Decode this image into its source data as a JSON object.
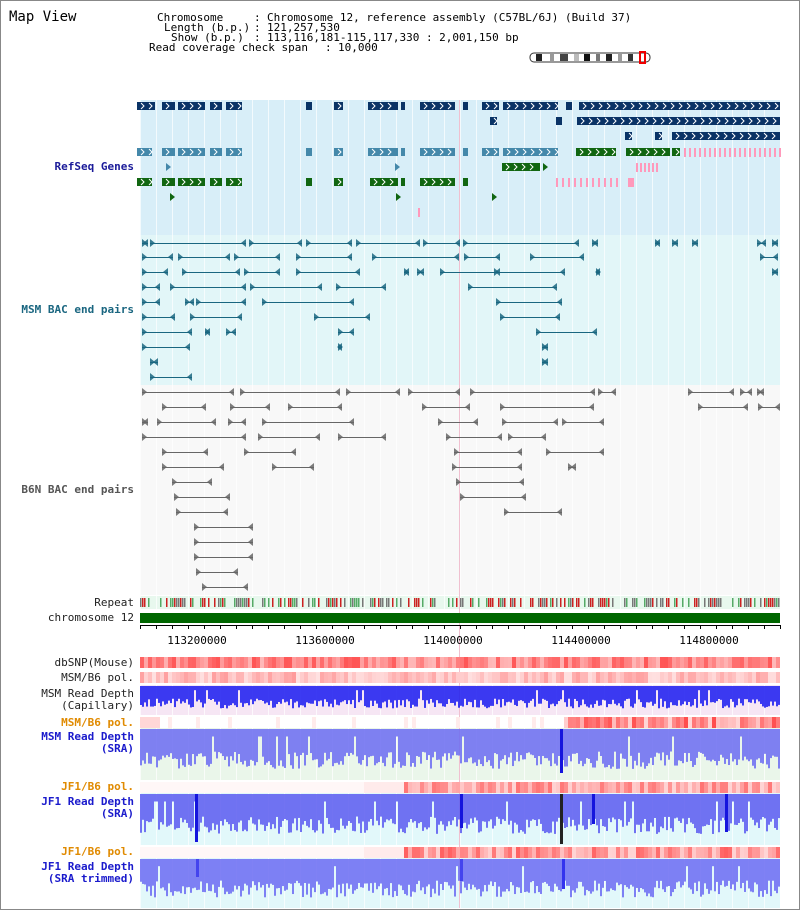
{
  "page": {
    "title": "Map View"
  },
  "header": {
    "chromosome_label": "Chromosome",
    "chromosome_value": "Chromosome 12, reference assembly (C57BL/6J) (Build 37)",
    "length_label": "Length (b.p.)",
    "length_value": "121,257,530",
    "show_label": "Show (b.p.)",
    "show_value": "113,116,181-115,117,330 : 2,001,150 bp",
    "span_label": "Read coverage check span",
    "span_value": "10,000"
  },
  "tracks": {
    "refseq": "RefSeq Genes",
    "msm_bac": "MSM BAC end pairs",
    "b6n_bac": "B6N BAC end pairs",
    "repeat": "Repeat",
    "chromosome": "chromosome 12",
    "dbsnp": "dbSNP(Mouse)",
    "msm_b6_pol_1": "MSM/B6 pol.",
    "msm_depth_cap_1": "MSM Read Depth",
    "msm_depth_cap_2": "(Capillary)",
    "msm_b6_pol_2": "MSM/B6 pol.",
    "msm_depth_sra_1": "MSM Read Depth",
    "msm_depth_sra_2": "(SRA)",
    "jf1_b6_pol_1": "JF1/B6 pol.",
    "jf1_depth_sra_1": "JF1 Read Depth",
    "jf1_depth_sra_2": "(SRA)",
    "jf1_b6_pol_2": "JF1/B6 pol.",
    "jf1_depth_trim_1": "JF1 Read Depth",
    "jf1_depth_trim_2": "(SRA trimmed)"
  },
  "axis": {
    "ticks": [
      "113200000",
      "113600000",
      "114000000",
      "114400000",
      "114800000"
    ]
  },
  "colors": {
    "refseq_navy": "#0a3366",
    "refseq_blue": "#4488aa",
    "refseq_green": "#116611",
    "pink": "#ff99bb",
    "bac_teal": "#1a6680",
    "bac_gray": "#666666",
    "chrom_green": "#006600",
    "depth_blue": "#2222ee"
  }
}
